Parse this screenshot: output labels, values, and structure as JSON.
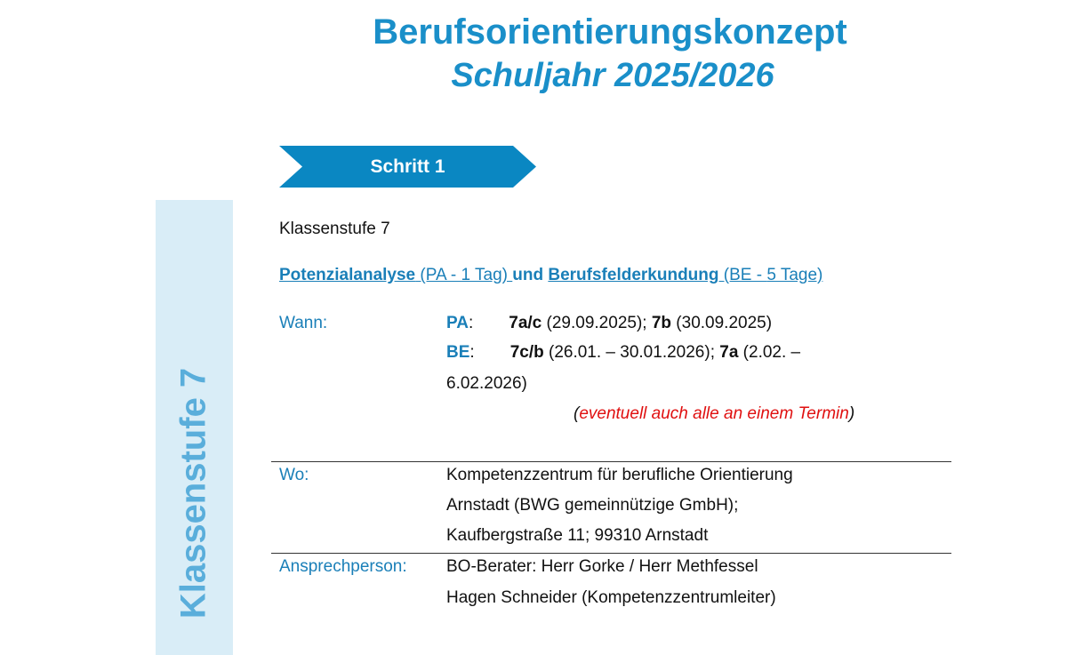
{
  "header": {
    "title": "Berufsorientierungskonzept",
    "subtitle": "Schuljahr 2025/2026"
  },
  "step": {
    "label": "Schritt 1"
  },
  "sidebar": {
    "label": "Klassenstufe 7"
  },
  "content": {
    "grade": "Klassenstufe 7",
    "headline": {
      "pa_name": "Potenzialanalyse",
      "pa_open": " (PA - ",
      "pa_dur": "1 Tag) ",
      "und": " und ",
      "be_name": "Berufsfelderkundung",
      "be_open": " (BE - ",
      "be_dur": "5 Tage)"
    },
    "wann": {
      "label": "Wann:",
      "pa_label": "PA",
      "pa_c1": "7a/c",
      "pa_d1": " (29.09.2025); ",
      "pa_c2": "7b",
      "pa_d2": " (30.09.2025)",
      "be_label": "BE",
      "be_c1": "7c/b",
      "be_d1": " (26.01. – 30.01.2026); ",
      "be_c2": "7a",
      "be_d2": " (2.02. –",
      "be_cont": "6.02.2026)",
      "note": "eventuell auch alle an einem Termin"
    },
    "wo": {
      "label": "Wo:",
      "lines": [
        "Kompetenzzentrum für berufliche Orientierung",
        "Arnstadt (BWG gemeinnützige GmbH);",
        "Kaufbergstraße 11; 99310 Arnstadt"
      ]
    },
    "contact": {
      "label": "Ansprechperson:",
      "lines": [
        "BO-Berater: Herr Gorke / Herr Methfessel",
        "Hagen Schneider (Kompetenzzentrumleiter)"
      ]
    }
  },
  "colors": {
    "accent": "#0a87c2",
    "sidebar_bg": "#d9edf7",
    "note": "#e01010"
  }
}
